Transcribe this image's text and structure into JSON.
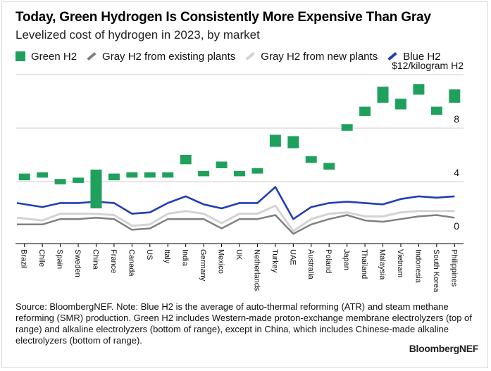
{
  "title": "Today, Green Hydrogen Is Consistently More Expensive Than Gray",
  "subtitle": "Levelized cost of hydrogen in 2023, by market",
  "legend": {
    "green": "Green H2",
    "gray_existing": "Gray H2 from existing plants",
    "gray_new": "Gray H2 from new plants",
    "blue": "Blue H2"
  },
  "colors": {
    "green": "#1fa15d",
    "gray_existing": "#808080",
    "gray_new": "#d3d3d3",
    "blue": "#1f3fb4",
    "grid": "#cccccc",
    "axis": "#000000"
  },
  "footer": {
    "source": "Source: BloombergNEF. Note: Blue H2 is the average of auto-thermal reforming (ATR) and steam methane reforming (SMR) production. Green H2 includes Western-made proton-exchange membrane electrolyzers (top of range) and alkaline electrolyzers (bottom of range), except in China, which includes Chinese-made alkaline electrolyzers (bottom of range).",
    "brand": "BloombergNEF"
  },
  "chart_data": {
    "type": "line",
    "title": "Today, Green Hydrogen Is Consistently More Expensive Than Gray",
    "subtitle": "Levelized cost of hydrogen in 2023, by market",
    "ylabel": "$12/kilogram H2",
    "yticks": [
      {
        "value": 12,
        "label": "$12/kilogram H2"
      },
      {
        "value": 8,
        "label": "8"
      },
      {
        "value": 4,
        "label": "4"
      },
      {
        "value": 0,
        "label": "0"
      }
    ],
    "ylim": [
      0,
      12.6
    ],
    "grid": true,
    "legend_position": "top-left",
    "categories": [
      "Brazil",
      "Chile",
      "Spain",
      "Sweden",
      "China",
      "France",
      "Canada",
      "US",
      "Italy",
      "India",
      "Germany",
      "Mexico",
      "UK",
      "Netherlands",
      "Turkey",
      "UAE",
      "Australia",
      "Poland",
      "Japan",
      "Thailand",
      "Malaysia",
      "Vietnam",
      "Indonesia",
      "South Korea",
      "Philippines"
    ],
    "green_range": {
      "name": "Green H2",
      "low": [
        4.1,
        4.3,
        3.8,
        3.9,
        2.0,
        4.1,
        4.3,
        4.3,
        4.3,
        5.3,
        4.4,
        5.0,
        4.4,
        4.6,
        6.6,
        6.5,
        5.4,
        4.9,
        7.8,
        8.9,
        9.9,
        9.4,
        10.5,
        9.0,
        9.9
      ],
      "high": [
        4.6,
        4.7,
        4.2,
        4.3,
        4.9,
        4.6,
        4.7,
        4.7,
        4.7,
        6.0,
        4.8,
        5.5,
        4.8,
        5.0,
        7.5,
        7.4,
        5.9,
        5.4,
        8.3,
        9.6,
        11.1,
        10.2,
        11.3,
        9.6,
        10.9
      ]
    },
    "series": [
      {
        "name": "Blue H2",
        "values": [
          2.4,
          2.1,
          2.4,
          2.4,
          2.5,
          2.4,
          1.6,
          1.7,
          2.4,
          2.9,
          2.3,
          2.0,
          2.4,
          2.4,
          3.6,
          1.2,
          2.1,
          2.4,
          2.5,
          2.4,
          2.3,
          2.7,
          2.9,
          2.8,
          2.9
        ]
      },
      {
        "name": "Gray H2 from new plants",
        "values": [
          1.3,
          1.1,
          1.6,
          1.6,
          1.6,
          1.5,
          0.7,
          0.8,
          1.6,
          1.8,
          1.6,
          0.9,
          1.6,
          1.6,
          2.2,
          0.3,
          1.2,
          1.6,
          1.7,
          1.4,
          1.4,
          1.7,
          1.8,
          1.8,
          1.8
        ]
      },
      {
        "name": "Gray H2 from existing plants",
        "values": [
          0.8,
          0.8,
          1.2,
          1.2,
          1.3,
          1.2,
          0.4,
          0.5,
          1.2,
          1.2,
          1.2,
          0.5,
          1.2,
          1.2,
          1.5,
          0.1,
          0.8,
          1.2,
          1.5,
          1.1,
          1.0,
          1.2,
          1.4,
          1.5,
          1.3
        ]
      }
    ]
  }
}
